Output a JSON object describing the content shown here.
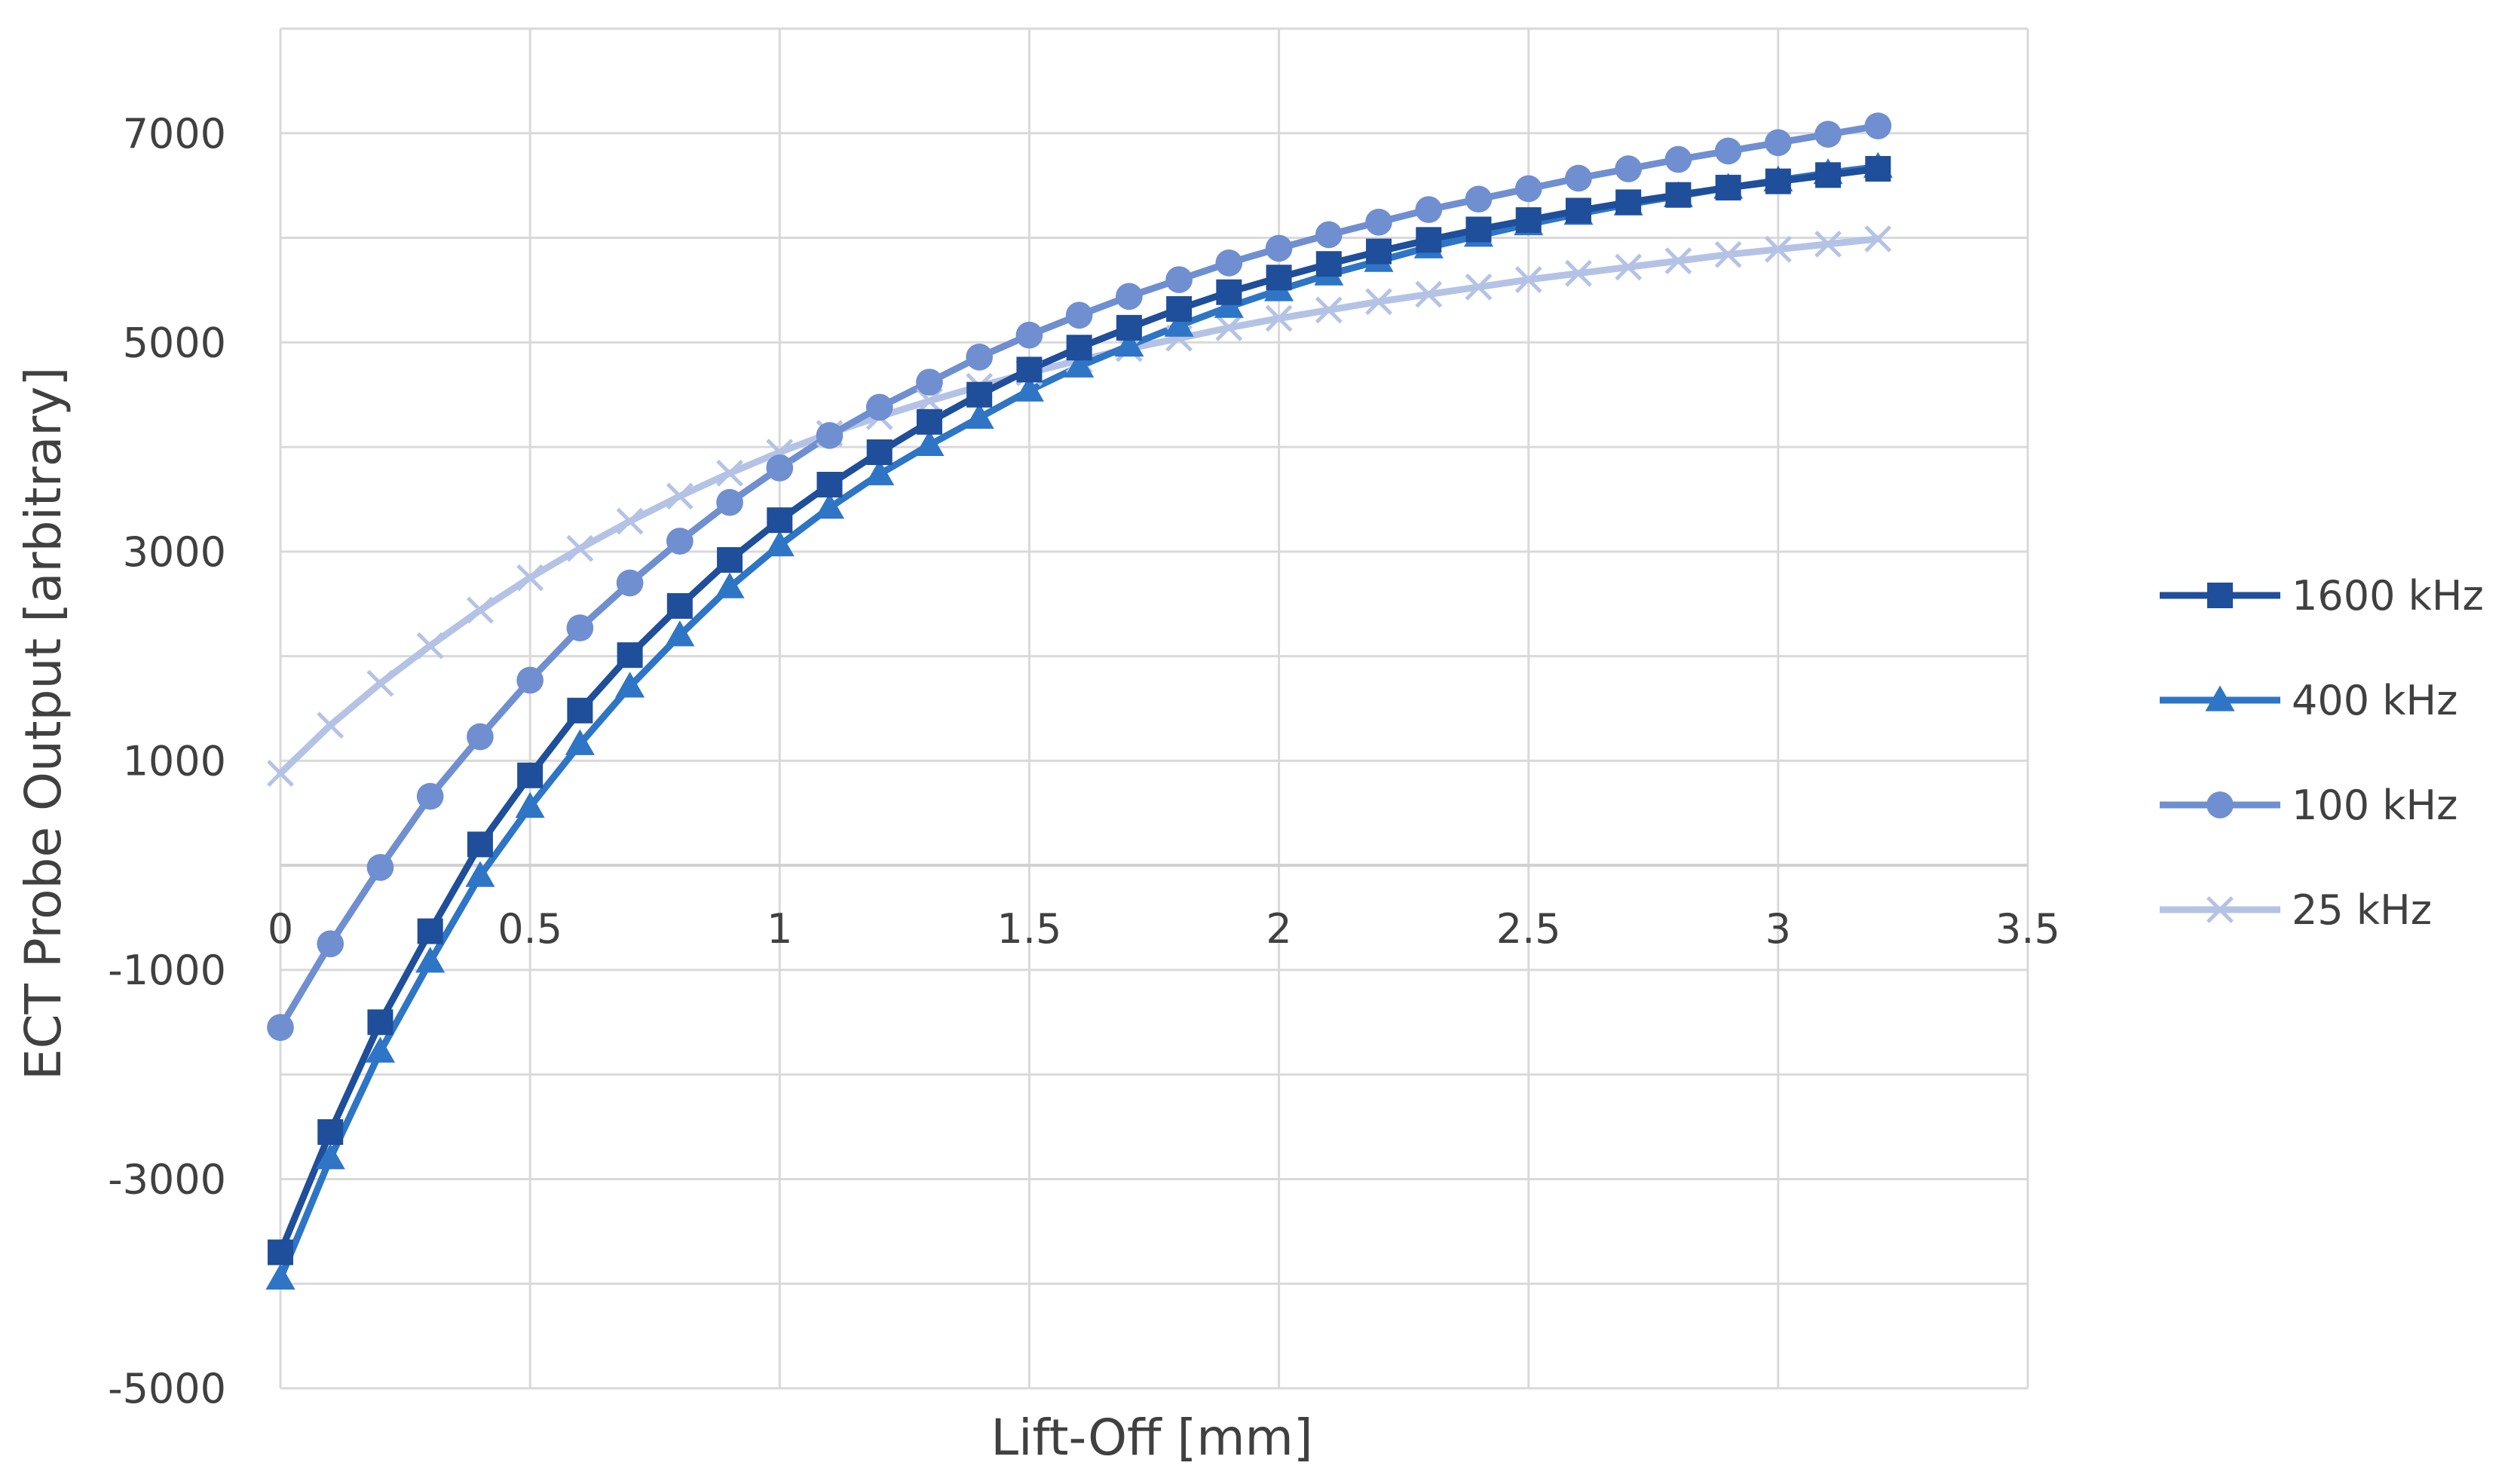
{
  "chart_data": {
    "type": "line",
    "title": "",
    "xlabel": "Lift-Off [mm]",
    "ylabel": "ECT Probe Output [arbitrary]",
    "xlim": [
      0,
      3.5
    ],
    "ylim": [
      -5000,
      8000
    ],
    "xticks": [
      0,
      0.5,
      1,
      1.5,
      2,
      2.5,
      3,
      3.5
    ],
    "xtick_labels": [
      "0",
      "0.5",
      "1",
      "1.5",
      "2",
      "2.5",
      "3",
      "3.5"
    ],
    "yticks": [
      -5000,
      -3000,
      -1000,
      1000,
      3000,
      5000,
      7000
    ],
    "ytick_labels": [
      "-5000",
      "-3000",
      "-1000",
      "1000",
      "3000",
      "5000",
      "7000"
    ],
    "grid": true,
    "legend_position": "right",
    "x": [
      0,
      0.1,
      0.2,
      0.3,
      0.4,
      0.5,
      0.6,
      0.7,
      0.8,
      0.9,
      1.0,
      1.1,
      1.2,
      1.3,
      1.4,
      1.5,
      1.6,
      1.7,
      1.8,
      1.9,
      2.0,
      2.1,
      2.2,
      2.3,
      2.4,
      2.5,
      2.6,
      2.7,
      2.8,
      2.9,
      3.0,
      3.1,
      3.2
    ],
    "series": [
      {
        "name": "1600 kHz",
        "color": "#1f4e9a",
        "marker": "square",
        "values": [
          -3700,
          -2550,
          -1500,
          -630,
          200,
          860,
          1480,
          2010,
          2480,
          2920,
          3300,
          3640,
          3950,
          4240,
          4500,
          4740,
          4950,
          5140,
          5320,
          5480,
          5620,
          5750,
          5870,
          5980,
          6080,
          6170,
          6260,
          6340,
          6410,
          6480,
          6540,
          6600,
          6660
        ]
      },
      {
        "name": "400 kHz",
        "color": "#2e75c6",
        "marker": "triangle",
        "values": [
          -3950,
          -2800,
          -1780,
          -920,
          -100,
          560,
          1160,
          1710,
          2200,
          2660,
          3060,
          3420,
          3740,
          4020,
          4280,
          4540,
          4770,
          4970,
          5160,
          5340,
          5500,
          5650,
          5780,
          5910,
          6020,
          6130,
          6230,
          6320,
          6400,
          6480,
          6550,
          6620,
          6680
        ]
      },
      {
        "name": "100 kHz",
        "color": "#6f8fd0",
        "marker": "circle",
        "values": [
          -1550,
          -750,
          -20,
          660,
          1230,
          1770,
          2270,
          2700,
          3100,
          3470,
          3800,
          4110,
          4380,
          4620,
          4860,
          5070,
          5260,
          5440,
          5600,
          5760,
          5900,
          6030,
          6150,
          6270,
          6370,
          6470,
          6570,
          6660,
          6750,
          6830,
          6910,
          6990,
          7070
        ]
      },
      {
        "name": "25 kHz",
        "color": "#b4c3e5",
        "marker": "x",
        "values": [
          880,
          1340,
          1740,
          2100,
          2440,
          2750,
          3030,
          3290,
          3530,
          3750,
          3950,
          4130,
          4290,
          4440,
          4580,
          4710,
          4830,
          4940,
          5040,
          5140,
          5230,
          5310,
          5390,
          5460,
          5530,
          5600,
          5660,
          5720,
          5780,
          5840,
          5890,
          5940,
          5990
        ]
      }
    ]
  }
}
